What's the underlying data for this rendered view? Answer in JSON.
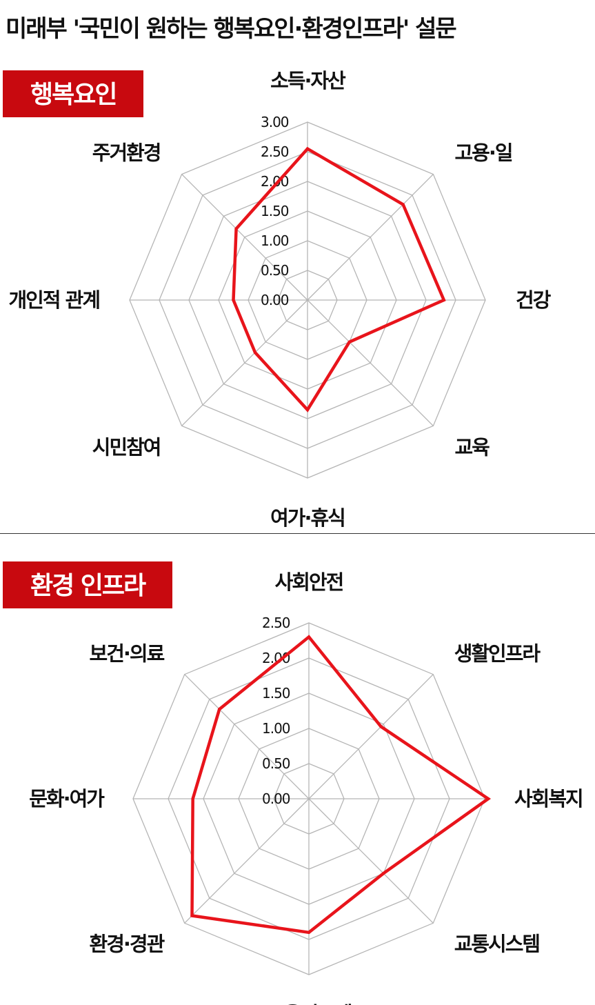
{
  "title": "미래부 '국민이 원하는 행복요인·환경인프라' 설문",
  "colors": {
    "accent": "#c8090f",
    "series_line": "#e8141b",
    "grid": "#b5b5b5"
  },
  "chart_data": [
    {
      "type": "radar",
      "badge": "행복요인",
      "categories": [
        "소득·자산",
        "고용·일",
        "건강",
        "교육",
        "여가·휴식",
        "시민참여",
        "개인적 관계",
        "주거환경"
      ],
      "values": [
        2.55,
        2.28,
        2.3,
        1.0,
        1.85,
        1.25,
        1.25,
        1.7
      ],
      "ylim": [
        0,
        3.0
      ],
      "ticks": [
        "0.00",
        "0.50",
        "1.00",
        "1.50",
        "2.00",
        "2.50",
        "3.00"
      ],
      "grid": true,
      "legend": null
    },
    {
      "type": "radar",
      "badge": "환경 인프라",
      "categories": [
        "사회안전",
        "생활인프라",
        "사회복지",
        "교통시스템",
        "교육시스템",
        "환경·경관",
        "문화·여가",
        "보건·의료"
      ],
      "values": [
        2.3,
        1.45,
        2.55,
        1.5,
        1.9,
        2.35,
        1.65,
        1.8
      ],
      "ylim": [
        0,
        2.5
      ],
      "ticks": [
        "0.00",
        "0.50",
        "1.00",
        "1.50",
        "2.00",
        "2.50"
      ],
      "grid": true,
      "legend": null
    }
  ]
}
